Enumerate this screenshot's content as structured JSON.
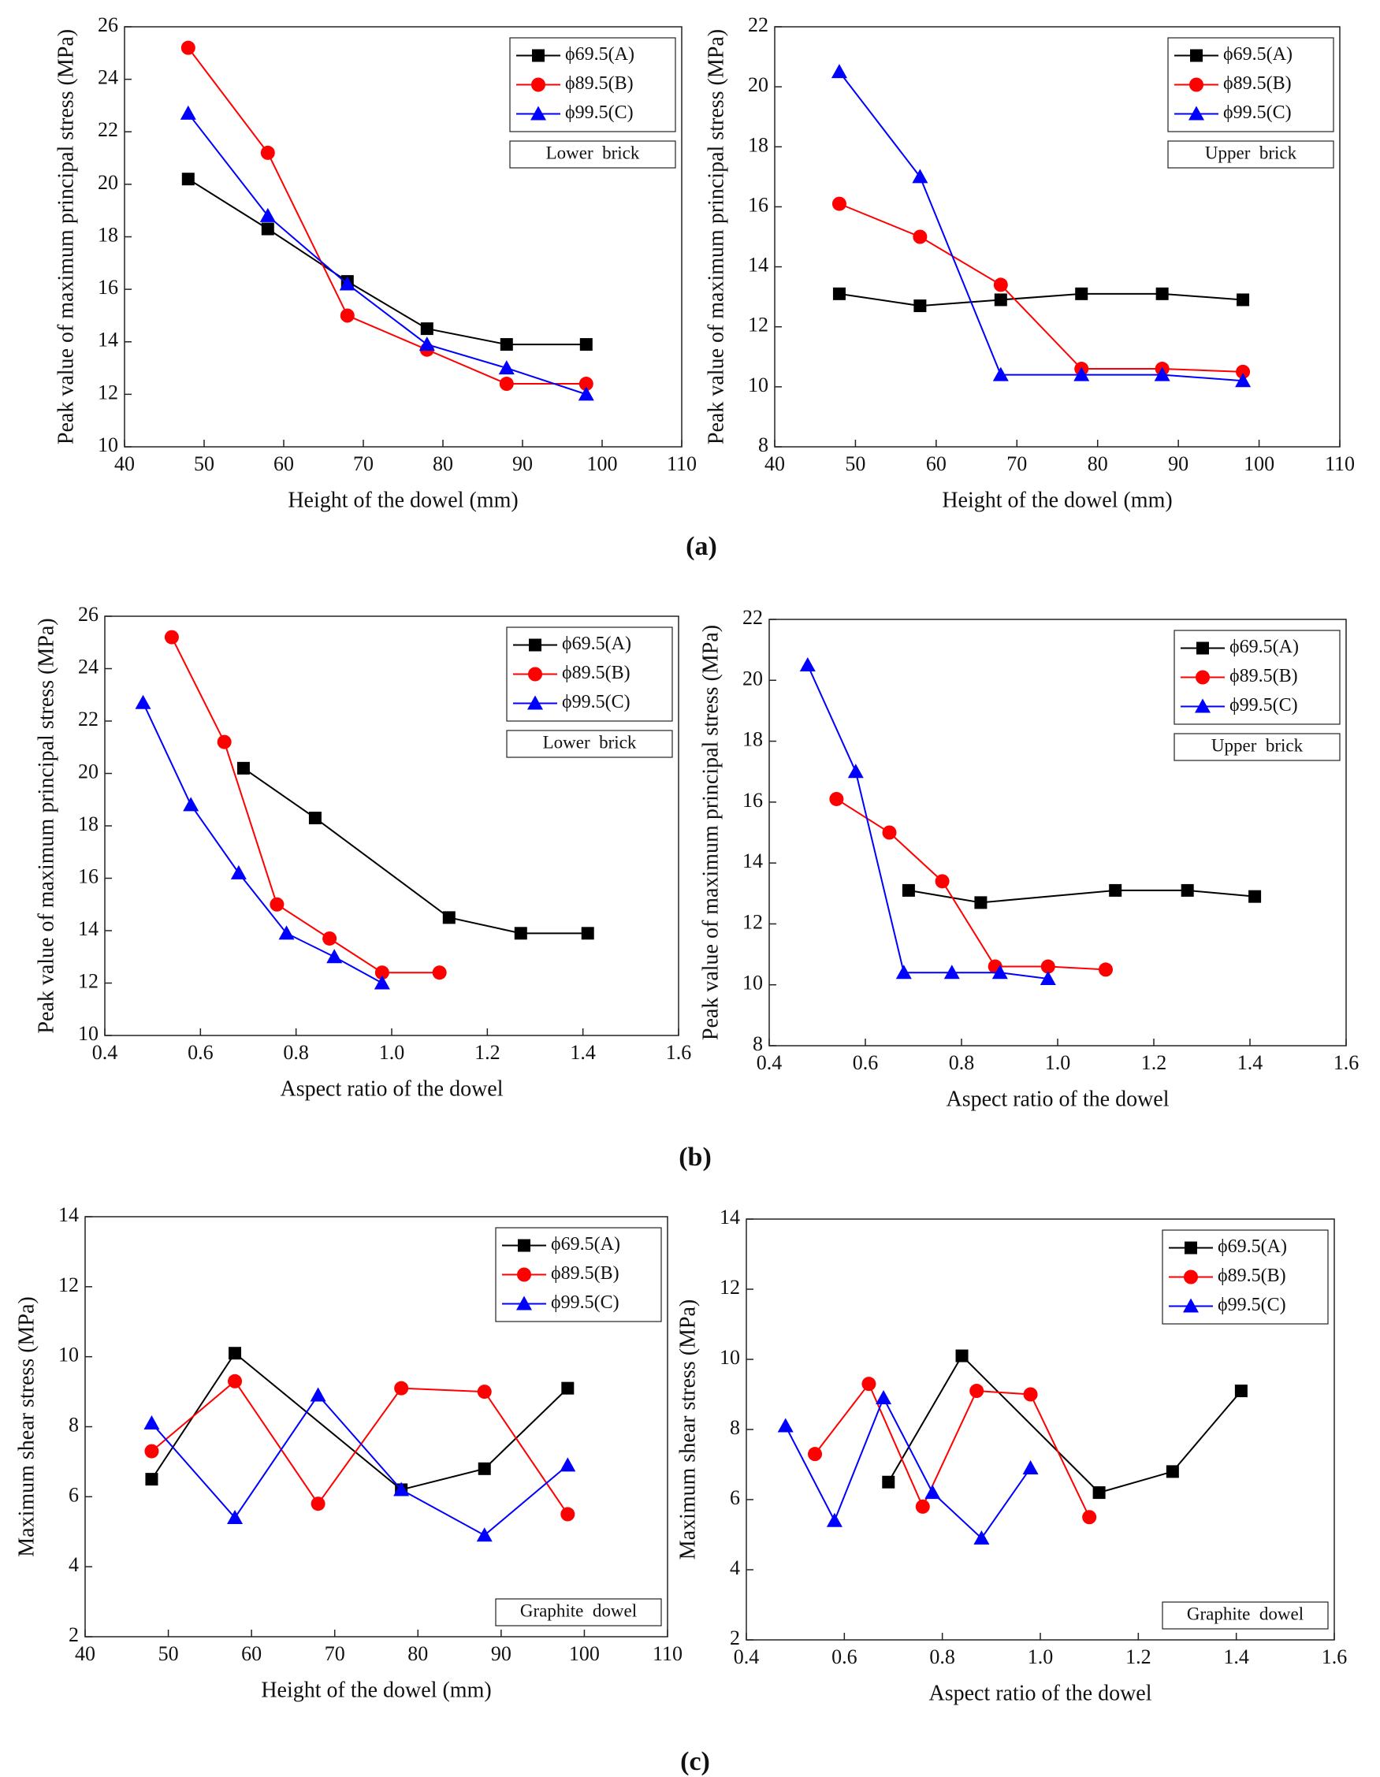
{
  "panel_labels": [
    "(a)",
    "(b)",
    "(c)"
  ],
  "chart_data": [
    {
      "type": "line",
      "xlabel": "Height of the dowel (mm)",
      "ylabel": "Peak value of maximum principal stress (MPa)",
      "xlim": [
        40,
        110
      ],
      "xticks": [
        40,
        50,
        60,
        70,
        80,
        90,
        100,
        110
      ],
      "ylim": [
        10,
        26
      ],
      "yticks": [
        10,
        12,
        14,
        16,
        18,
        20,
        22,
        24,
        26
      ],
      "legend_loc": "upper right",
      "annotation": "Lower  brick",
      "annotation_loc": "upper right",
      "series": [
        {
          "name": "ϕ69.5(A)",
          "color": "#000000",
          "marker": "square",
          "x": [
            48,
            58,
            68,
            78,
            88,
            98
          ],
          "values": [
            20.2,
            18.3,
            16.3,
            14.5,
            13.9,
            13.9
          ]
        },
        {
          "name": "ϕ89.5(B)",
          "color": "#ff0000",
          "marker": "circle",
          "x": [
            48,
            58,
            68,
            78,
            88,
            98
          ],
          "values": [
            25.2,
            21.2,
            15.0,
            13.7,
            12.4,
            12.4
          ]
        },
        {
          "name": "ϕ99.5(C)",
          "color": "#0000ff",
          "marker": "triangle",
          "x": [
            48,
            58,
            68,
            78,
            88,
            98
          ],
          "values": [
            22.7,
            18.8,
            16.2,
            13.9,
            13.0,
            12.0
          ]
        }
      ]
    },
    {
      "type": "line",
      "xlabel": "Height of the dowel (mm)",
      "ylabel": "Peak value of maximum principal stress (MPa)",
      "xlim": [
        40,
        110
      ],
      "xticks": [
        40,
        50,
        60,
        70,
        80,
        90,
        100,
        110
      ],
      "ylim": [
        8,
        22
      ],
      "yticks": [
        8,
        10,
        12,
        14,
        16,
        18,
        20,
        22
      ],
      "legend_loc": "upper right",
      "annotation": "Upper  brick",
      "annotation_loc": "upper right",
      "series": [
        {
          "name": "ϕ69.5(A)",
          "color": "#000000",
          "marker": "square",
          "x": [
            48,
            58,
            68,
            78,
            88,
            98
          ],
          "values": [
            13.1,
            12.7,
            12.9,
            13.1,
            13.1,
            12.9
          ]
        },
        {
          "name": "ϕ89.5(B)",
          "color": "#ff0000",
          "marker": "circle",
          "x": [
            48,
            58,
            68,
            78,
            88,
            98
          ],
          "values": [
            16.1,
            15.0,
            13.4,
            10.6,
            10.6,
            10.5
          ]
        },
        {
          "name": "ϕ99.5(C)",
          "color": "#0000ff",
          "marker": "triangle",
          "x": [
            48,
            58,
            68,
            78,
            88,
            98
          ],
          "values": [
            20.5,
            17.0,
            10.4,
            10.4,
            10.4,
            10.2
          ]
        }
      ]
    },
    {
      "type": "line",
      "xlabel": "Aspect ratio of the dowel",
      "ylabel": "Peak value of maximum principal stress (MPa)",
      "xlim": [
        0.4,
        1.6
      ],
      "xticks": [
        0.4,
        0.6,
        0.8,
        {
          "value": 1,
          "label": "1.0"
        },
        1.2,
        1.4,
        1.6
      ],
      "ylim": [
        10,
        26
      ],
      "yticks": [
        10,
        12,
        14,
        16,
        18,
        20,
        22,
        24,
        26
      ],
      "legend_loc": "upper right",
      "annotation": "Lower  brick",
      "annotation_loc": "upper right",
      "series": [
        {
          "name": "ϕ69.5(A)",
          "color": "#000000",
          "marker": "square",
          "x": [
            0.69,
            0.84,
            1.12,
            1.27,
            1.41
          ],
          "values": [
            20.2,
            18.3,
            14.5,
            13.9,
            13.9
          ]
        },
        {
          "name": "ϕ89.5(B)",
          "color": "#ff0000",
          "marker": "circle",
          "x": [
            0.54,
            0.65,
            0.76,
            0.87,
            0.98,
            1.1
          ],
          "values": [
            25.2,
            21.2,
            15.0,
            13.7,
            12.4,
            12.4
          ]
        },
        {
          "name": "ϕ99.5(C)",
          "color": "#0000ff",
          "marker": "triangle",
          "x": [
            0.48,
            0.58,
            0.68,
            0.78,
            0.88,
            0.98
          ],
          "values": [
            22.7,
            18.8,
            16.2,
            13.9,
            13.0,
            12.0
          ]
        }
      ]
    },
    {
      "type": "line",
      "xlabel": "Aspect ratio of the dowel",
      "ylabel": "Peak value of maximum principal stress (MPa)",
      "xlim": [
        0.4,
        1.6
      ],
      "xticks": [
        0.4,
        0.6,
        0.8,
        {
          "value": 1,
          "label": "1.0"
        },
        1.2,
        1.4,
        1.6
      ],
      "ylim": [
        8,
        22
      ],
      "yticks": [
        8,
        10,
        12,
        14,
        16,
        18,
        20,
        22
      ],
      "legend_loc": "upper right",
      "annotation": "Upper  brick",
      "annotation_loc": "upper right",
      "series": [
        {
          "name": "ϕ69.5(A)",
          "color": "#000000",
          "marker": "square",
          "x": [
            0.69,
            0.84,
            1.12,
            1.27,
            1.41
          ],
          "values": [
            13.1,
            12.7,
            13.1,
            13.1,
            12.9
          ]
        },
        {
          "name": "ϕ89.5(B)",
          "color": "#ff0000",
          "marker": "circle",
          "x": [
            0.54,
            0.65,
            0.76,
            0.87,
            0.98,
            1.1
          ],
          "values": [
            16.1,
            15.0,
            13.4,
            10.6,
            10.6,
            10.5
          ]
        },
        {
          "name": "ϕ99.5(C)",
          "color": "#0000ff",
          "marker": "triangle",
          "x": [
            0.48,
            0.58,
            0.68,
            0.78,
            0.88,
            0.98
          ],
          "values": [
            20.5,
            17.0,
            10.4,
            10.4,
            10.4,
            10.2
          ]
        }
      ]
    },
    {
      "type": "line",
      "xlabel": "Height of the dowel (mm)",
      "ylabel": "Maximum shear stress (MPa)",
      "xlim": [
        40,
        110
      ],
      "xticks": [
        40,
        50,
        60,
        70,
        80,
        90,
        100,
        110
      ],
      "ylim": [
        2,
        14
      ],
      "yticks": [
        2,
        4,
        6,
        8,
        10,
        12,
        14
      ],
      "legend_loc": "upper right",
      "annotation": "Graphite  dowel",
      "annotation_loc": "lower right",
      "series": [
        {
          "name": "ϕ69.5(A)",
          "color": "#000000",
          "marker": "square",
          "x": [
            48,
            58,
            78,
            88,
            98
          ],
          "values": [
            6.5,
            10.1,
            6.2,
            6.8,
            9.1
          ]
        },
        {
          "name": "ϕ89.5(B)",
          "color": "#ff0000",
          "marker": "circle",
          "x": [
            48,
            58,
            68,
            78,
            88,
            98
          ],
          "values": [
            7.3,
            9.3,
            5.8,
            9.1,
            9.0,
            5.5
          ]
        },
        {
          "name": "ϕ99.5(C)",
          "color": "#0000ff",
          "marker": "triangle",
          "x": [
            48,
            58,
            68,
            78,
            88,
            98
          ],
          "values": [
            8.1,
            5.4,
            8.9,
            6.2,
            4.9,
            6.9
          ]
        }
      ]
    },
    {
      "type": "line",
      "xlabel": "Aspect ratio of the dowel",
      "ylabel": "Maximum shear stress (MPa)",
      "xlim": [
        0.4,
        1.6
      ],
      "xticks": [
        0.4,
        0.6,
        0.8,
        {
          "value": 1,
          "label": "1.0"
        },
        1.2,
        1.4,
        1.6
      ],
      "ylim": [
        2,
        14
      ],
      "yticks": [
        2,
        4,
        6,
        8,
        10,
        12,
        14
      ],
      "legend_loc": "upper right",
      "annotation": "Graphite  dowel",
      "annotation_loc": "lower right",
      "series": [
        {
          "name": "ϕ69.5(A)",
          "color": "#000000",
          "marker": "square",
          "x": [
            0.69,
            0.84,
            1.12,
            1.27,
            1.41
          ],
          "values": [
            6.5,
            10.1,
            6.2,
            6.8,
            9.1
          ]
        },
        {
          "name": "ϕ89.5(B)",
          "color": "#ff0000",
          "marker": "circle",
          "x": [
            0.54,
            0.65,
            0.76,
            0.87,
            0.98,
            1.1
          ],
          "values": [
            7.3,
            9.3,
            5.8,
            9.1,
            9.0,
            5.5
          ]
        },
        {
          "name": "ϕ99.5(C)",
          "color": "#0000ff",
          "marker": "triangle",
          "x": [
            0.48,
            0.58,
            0.68,
            0.78,
            0.88,
            0.98
          ],
          "values": [
            8.1,
            5.4,
            8.9,
            6.2,
            4.9,
            6.9
          ]
        }
      ]
    }
  ]
}
